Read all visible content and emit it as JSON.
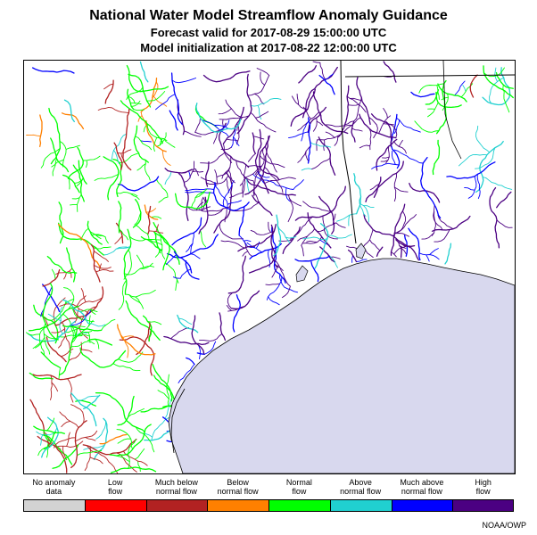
{
  "title": "National Water Model Streamflow Anomaly Guidance",
  "forecast_valid": "Forecast valid for 2017-08-29 15:00:00 UTC",
  "model_init": "Model initialization at 2017-08-22 12:00:00 UTC",
  "credit": "NOAA/OWP",
  "colors": {
    "gulf": "#d8d8ee",
    "border": "#000000"
  },
  "legend": [
    {
      "line1": "No anomaly",
      "line2": "data",
      "color": "#d3d3d3"
    },
    {
      "line1": "Low",
      "line2": "flow",
      "color": "#ff0000"
    },
    {
      "line1": "Much below",
      "line2": "normal flow",
      "color": "#b22222"
    },
    {
      "line1": "Below",
      "line2": "normal flow",
      "color": "#ff8000"
    },
    {
      "line1": "Normal",
      "line2": "flow",
      "color": "#00ff00"
    },
    {
      "line1": "Above",
      "line2": "normal flow",
      "color": "#20d0d0"
    },
    {
      "line1": "Much above",
      "line2": "normal flow",
      "color": "#0000ff"
    },
    {
      "line1": "High",
      "line2": "flow",
      "color": "#4b0082"
    }
  ]
}
